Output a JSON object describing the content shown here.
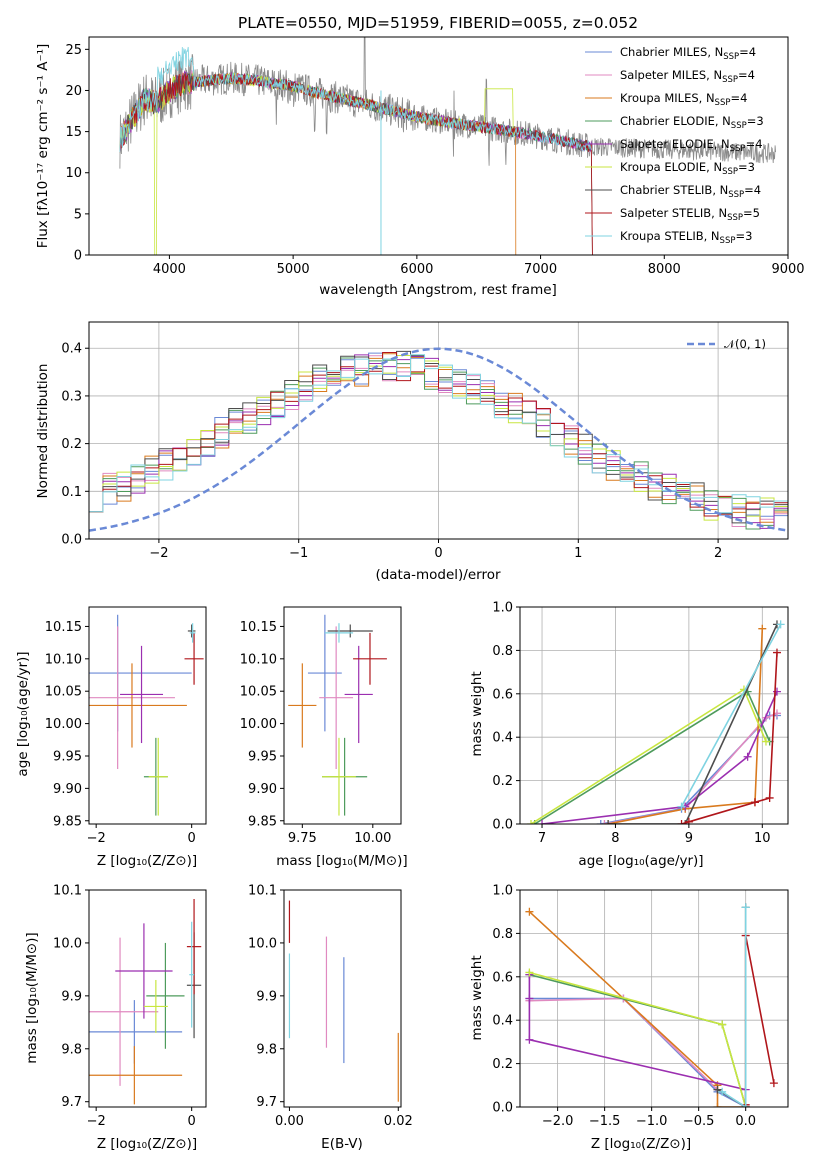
{
  "colors": {
    "chabrier_miles": "#6a89d6",
    "salpeter_miles": "#e08ac0",
    "kroupa_miles": "#d97a1e",
    "chabrier_elodie": "#4e9b5c",
    "salpeter_elodie": "#9b2fb0",
    "kroupa_elodie": "#c8e640",
    "chabrier_stelib": "#4d4d4d",
    "salpeter_stelib": "#b0161b",
    "kroupa_stelib": "#7fd3e1",
    "gauss": "#6a89d6"
  },
  "chart_data": [
    {
      "id": "spectrum",
      "type": "line",
      "title": "PLATE=0550, MJD=51959, FIBERID=0055, z=0.052",
      "xlabel": "wavelength [Angstrom, rest frame]",
      "ylabel": "Flux [fλ10⁻¹⁷ erg cm⁻² s⁻¹ A⁻¹]",
      "xlim": [
        3350,
        9000
      ],
      "ylim": [
        0,
        26.5
      ],
      "xticks": [
        "4000",
        "5000",
        "6000",
        "7000",
        "8000",
        "9000"
      ],
      "yticks": [
        "0",
        "5",
        "10",
        "15",
        "20",
        "25"
      ],
      "legend_position": "top-right",
      "legend": [
        {
          "pre": "Chabrier MILES, N",
          "sub": "SSP",
          "post": "=4"
        },
        {
          "pre": "Salpeter MILES, N",
          "sub": "SSP",
          "post": "=4"
        },
        {
          "pre": "Kroupa MILES, N",
          "sub": "SSP",
          "post": "=4"
        },
        {
          "pre": "Chabrier ELODIE, N",
          "sub": "SSP",
          "post": "=3"
        },
        {
          "pre": "Salpeter ELODIE, N",
          "sub": "SSP",
          "post": "=4"
        },
        {
          "pre": "Kroupa ELODIE, N",
          "sub": "SSP",
          "post": "=3"
        },
        {
          "pre": "Chabrier STELIB, N",
          "sub": "SSP",
          "post": "=4"
        },
        {
          "pre": "Salpeter STELIB, N",
          "sub": "SSP",
          "post": "=5"
        },
        {
          "pre": "Kroupa STELIB, N",
          "sub": "SSP",
          "post": "=3"
        }
      ],
      "continuum": {
        "x": [
          3600,
          3700,
          3800,
          3900,
          4000,
          4100,
          4300,
          4500,
          4700,
          5000,
          5300,
          5600,
          6000,
          6300,
          6600,
          6900,
          7200,
          7400
        ],
        "y": [
          14,
          16.5,
          19,
          18.5,
          20,
          20.8,
          21.2,
          21.5,
          21.2,
          20.5,
          19.3,
          18.3,
          16.8,
          16.0,
          15.4,
          14.7,
          13.8,
          13.2
        ]
      },
      "observed_range": [
        3600,
        8900
      ]
    },
    {
      "id": "residuals",
      "type": "bar",
      "xlabel": "(data-model)/error",
      "ylabel": "Normed distribution",
      "xlim": [
        -2.5,
        2.5
      ],
      "ylim": [
        0,
        0.455
      ],
      "xticks": [
        "−2",
        "−1",
        "0",
        "1",
        "2"
      ],
      "yticks": [
        "0.0",
        "0.1",
        "0.2",
        "0.3",
        "0.4"
      ],
      "legend_label": "𝒩(0, 1)",
      "legend_position": "top-right",
      "bin_width": 0.1,
      "bin_start": -2.5
    },
    {
      "id": "age-vs-z",
      "type": "scatter",
      "xlabel": "Z [log₁₀(Z/Z⊙)]",
      "ylabel": "age  [log₁₀(age/yr)]",
      "xlim": [
        -2.15,
        0.3
      ],
      "ylim": [
        9.845,
        10.18
      ],
      "xticks": [
        "−2",
        "0"
      ],
      "yticks": [
        "9.85",
        "9.90",
        "9.95",
        "10.00",
        "10.05",
        "10.10",
        "10.15"
      ],
      "points": [
        {
          "s": "chabrier_miles",
          "x": -1.55,
          "y": 10.078,
          "xe": 1.55,
          "ye": 0.09
        },
        {
          "s": "salpeter_miles",
          "x": -1.55,
          "y": 10.04,
          "xe": 1.2,
          "ye": 0.11
        },
        {
          "s": "kroupa_miles",
          "x": -1.25,
          "y": 10.028,
          "xe": 1.15,
          "ye": 0.065
        },
        {
          "s": "chabrier_elodie",
          "x": -0.75,
          "y": 9.918,
          "xe": 0.25,
          "ye": 0.06
        },
        {
          "s": "salpeter_elodie",
          "x": -1.05,
          "y": 10.045,
          "xe": 0.45,
          "ye": 0.075
        },
        {
          "s": "kroupa_elodie",
          "x": -0.7,
          "y": 9.918,
          "xe": 0.2,
          "ye": 0.06
        },
        {
          "s": "chabrier_stelib",
          "x": 0.0,
          "y": 10.143,
          "xe": 0.08,
          "ye": 0.01
        },
        {
          "s": "salpeter_stelib",
          "x": 0.05,
          "y": 10.1,
          "xe": 0.2,
          "ye": 0.04
        },
        {
          "s": "kroupa_stelib",
          "x": 0.02,
          "y": 10.14,
          "xe": 0.06,
          "ye": 0.015
        }
      ]
    },
    {
      "id": "age-vs-mass",
      "type": "scatter",
      "xlabel": "mass [log₁₀(M/M⊙)]",
      "ylabel": "",
      "xlim": [
        9.685,
        10.1
      ],
      "ylim": [
        9.845,
        10.18
      ],
      "xticks": [
        "9.75",
        "10.00"
      ],
      "yticks": [
        "9.85",
        "9.90",
        "9.95",
        "10.00",
        "10.05",
        "10.10",
        "10.15"
      ],
      "points": [
        {
          "s": "chabrier_miles",
          "x": 9.83,
          "y": 10.078,
          "xe": 0.06,
          "ye": 0.09
        },
        {
          "s": "salpeter_miles",
          "x": 9.87,
          "y": 10.04,
          "xe": 0.06,
          "ye": 0.11
        },
        {
          "s": "kroupa_miles",
          "x": 9.75,
          "y": 10.028,
          "xe": 0.05,
          "ye": 0.065
        },
        {
          "s": "chabrier_elodie",
          "x": 9.9,
          "y": 9.918,
          "xe": 0.08,
          "ye": 0.06
        },
        {
          "s": "salpeter_elodie",
          "x": 9.95,
          "y": 10.045,
          "xe": 0.05,
          "ye": 0.075
        },
        {
          "s": "kroupa_elodie",
          "x": 9.88,
          "y": 9.918,
          "xe": 0.06,
          "ye": 0.06
        },
        {
          "s": "chabrier_stelib",
          "x": 9.92,
          "y": 10.143,
          "xe": 0.08,
          "ye": 0.01
        },
        {
          "s": "salpeter_stelib",
          "x": 9.99,
          "y": 10.1,
          "xe": 0.06,
          "ye": 0.04
        },
        {
          "s": "kroupa_stelib",
          "x": 9.88,
          "y": 10.14,
          "xe": 0.05,
          "ye": 0.015
        }
      ]
    },
    {
      "id": "weight-vs-age",
      "type": "line",
      "xlabel": "age  [log₁₀(age/yr)]",
      "ylabel": "mass weight",
      "xlim": [
        6.7,
        10.35
      ],
      "ylim": [
        0,
        1.0
      ],
      "xticks": [
        "7",
        "8",
        "9",
        "10"
      ],
      "yticks": [
        "0.0",
        "0.2",
        "0.4",
        "0.6",
        "0.8",
        "1.0"
      ],
      "series": [
        {
          "s": "chabrier_miles",
          "x": [
            7.8,
            8.9,
            10.1,
            10.2
          ],
          "y": [
            0.0,
            0.07,
            0.5,
            0.5
          ]
        },
        {
          "s": "salpeter_miles",
          "x": [
            7.85,
            8.95,
            10.05,
            10.2
          ],
          "y": [
            0.0,
            0.07,
            0.49,
            0.51
          ]
        },
        {
          "s": "kroupa_miles",
          "x": [
            7.9,
            8.95,
            9.9,
            10.0
          ],
          "y": [
            0.0,
            0.07,
            0.1,
            0.9
          ]
        },
        {
          "s": "chabrier_elodie",
          "x": [
            6.9,
            9.8,
            10.1
          ],
          "y": [
            0.0,
            0.61,
            0.38
          ]
        },
        {
          "s": "salpeter_elodie",
          "x": [
            7.0,
            8.95,
            9.8,
            10.2
          ],
          "y": [
            0.0,
            0.08,
            0.31,
            0.61
          ]
        },
        {
          "s": "kroupa_elodie",
          "x": [
            6.85,
            9.75,
            10.05
          ],
          "y": [
            0.0,
            0.62,
            0.38
          ]
        },
        {
          "s": "chabrier_stelib",
          "x": [
            7.9,
            8.95,
            10.2
          ],
          "y": [
            0.0,
            0.0,
            0.92
          ]
        },
        {
          "s": "salpeter_stelib",
          "x": [
            8.9,
            9.0,
            9.9,
            10.1,
            10.2
          ],
          "y": [
            0.0,
            0.01,
            0.1,
            0.12,
            0.79
          ]
        },
        {
          "s": "kroupa_stelib",
          "x": [
            8.9,
            10.25
          ],
          "y": [
            0.08,
            0.92
          ]
        }
      ]
    },
    {
      "id": "mass-vs-z",
      "type": "scatter",
      "xlabel": "Z [log₁₀(Z/Z⊙)]",
      "ylabel": "mass [log₁₀(M/M⊙)]",
      "xlim": [
        -2.15,
        0.3
      ],
      "ylim": [
        9.69,
        10.1
      ],
      "xticks": [
        "−2",
        "0"
      ],
      "yticks": [
        "9.7",
        "9.8",
        "9.9",
        "10.0",
        "10.1"
      ],
      "points": [
        {
          "s": "chabrier_miles",
          "x": -1.2,
          "y": 9.832,
          "xe": 1.0,
          "ye": 0.06
        },
        {
          "s": "salpeter_miles",
          "x": -1.5,
          "y": 9.87,
          "xe": 0.8,
          "ye": 0.14
        },
        {
          "s": "kroupa_miles",
          "x": -1.2,
          "y": 9.75,
          "xe": 1.0,
          "ye": 0.055
        },
        {
          "s": "chabrier_elodie",
          "x": -0.55,
          "y": 9.9,
          "xe": 0.4,
          "ye": 0.1
        },
        {
          "s": "salpeter_elodie",
          "x": -1.0,
          "y": 9.947,
          "xe": 0.6,
          "ye": 0.09
        },
        {
          "s": "kroupa_elodie",
          "x": -0.75,
          "y": 9.88,
          "xe": 0.25,
          "ye": 0.05
        },
        {
          "s": "chabrier_stelib",
          "x": 0.05,
          "y": 9.92,
          "xe": 0.15,
          "ye": 0.1
        },
        {
          "s": "salpeter_stelib",
          "x": 0.05,
          "y": 9.993,
          "xe": 0.15,
          "ye": 0.09
        },
        {
          "s": "kroupa_stelib",
          "x": 0.0,
          "y": 9.94,
          "xe": 0.05,
          "ye": 0.1
        }
      ]
    },
    {
      "id": "mass-vs-ebv",
      "type": "scatter",
      "xlabel": "E(B-V)",
      "ylabel": "",
      "xlim": [
        -0.001,
        0.0205
      ],
      "ylim": [
        9.69,
        10.1
      ],
      "xticks": [
        "0.00",
        "0.02"
      ],
      "yticks": [
        "9.7",
        "9.8",
        "9.9",
        "10.0",
        "10.1"
      ],
      "points": [
        {
          "s": "chabrier_miles",
          "x": 0.01,
          "y": 9.873,
          "xe": 0,
          "ye": 0.1
        },
        {
          "s": "salpeter_miles",
          "x": 0.0068,
          "y": 9.907,
          "xe": 0,
          "ye": 0.105
        },
        {
          "s": "kroupa_miles",
          "x": 0.02,
          "y": 9.765,
          "xe": 0,
          "ye": 0.065
        },
        {
          "s": "salpeter_stelib",
          "x": 0.0,
          "y": 10.04,
          "xe": 0,
          "ye": 0.04
        },
        {
          "s": "kroupa_stelib",
          "x": 0.0,
          "y": 9.9,
          "xe": 0,
          "ye": 0.08
        }
      ]
    },
    {
      "id": "weight-vs-z",
      "type": "line",
      "xlabel": "Z [log₁₀(Z/Z⊙)]",
      "ylabel": "mass weight",
      "xlim": [
        -2.4,
        0.45
      ],
      "ylim": [
        0,
        1.0
      ],
      "xticks": [
        "−2.0",
        "−1.5",
        "−1.0",
        "−0.5",
        "0.0"
      ],
      "yticks": [
        "0.0",
        "0.2",
        "0.4",
        "0.6",
        "0.8",
        "1.0"
      ],
      "series": [
        {
          "s": "chabrier_miles",
          "x": [
            -2.3,
            -1.3,
            -0.3,
            0.0
          ],
          "y": [
            0.5,
            0.5,
            0.07,
            0.0
          ]
        },
        {
          "s": "salpeter_miles",
          "x": [
            -2.3,
            -1.3,
            -0.3,
            0.0
          ],
          "y": [
            0.49,
            0.5,
            0.08,
            0.0
          ]
        },
        {
          "s": "kroupa_miles",
          "x": [
            -2.3,
            -0.3,
            -0.3,
            0.0
          ],
          "y": [
            0.9,
            0.1,
            0.0,
            0.0
          ]
        },
        {
          "s": "chabrier_elodie",
          "x": [
            -2.3,
            -0.25,
            0.0
          ],
          "y": [
            0.61,
            0.38,
            0.0
          ]
        },
        {
          "s": "salpeter_elodie",
          "x": [
            -2.3,
            -2.3,
            -2.3,
            0.0,
            0.0
          ],
          "y": [
            0.61,
            0.5,
            0.31,
            0.08,
            0.0
          ]
        },
        {
          "s": "kroupa_elodie",
          "x": [
            -2.3,
            -0.25,
            0.0
          ],
          "y": [
            0.62,
            0.38,
            0.0
          ]
        },
        {
          "s": "chabrier_stelib",
          "x": [
            -0.3,
            0.0,
            0.0
          ],
          "y": [
            0.08,
            0.0,
            0.92
          ]
        },
        {
          "s": "salpeter_stelib",
          "x": [
            0.0,
            0.0,
            0.3
          ],
          "y": [
            0.01,
            0.79,
            0.11
          ]
        },
        {
          "s": "kroupa_stelib",
          "x": [
            -0.25,
            0.0,
            0.0
          ],
          "y": [
            0.07,
            0.0,
            0.92
          ]
        }
      ]
    }
  ]
}
